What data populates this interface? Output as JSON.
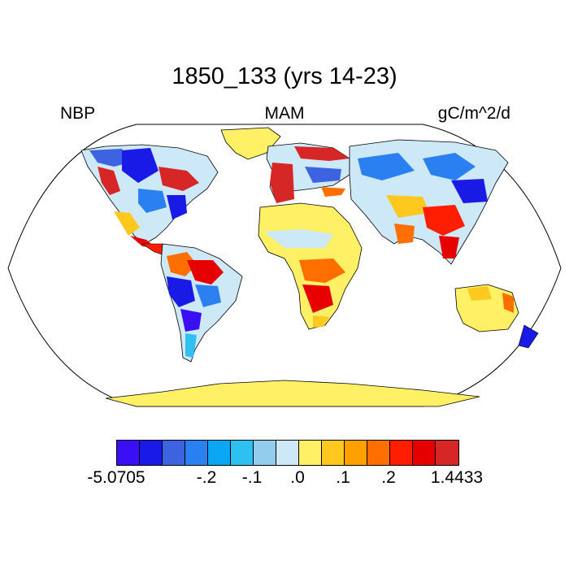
{
  "title": "1850_133 (yrs 14-23)",
  "left_label": "NBP",
  "center_label": "MAM",
  "right_label": "gC/m^2/d",
  "colorbar": {
    "colors": [
      "#3b0ff5",
      "#1a1ae6",
      "#3d63e0",
      "#2a80f0",
      "#0ba6f5",
      "#2fc0f2",
      "#93cdee",
      "#cde9f7",
      "#fff066",
      "#ffc81e",
      "#ffa000",
      "#ff6e00",
      "#ff1e00",
      "#e60000",
      "#d62626"
    ],
    "labels": [
      "-5.0705",
      "-.2",
      "-.1",
      ".0",
      ".1",
      ".2",
      "1.4433"
    ]
  },
  "map": {
    "projection": "Robinson",
    "ocean_color": "#ffffff",
    "land_outline_color": "#000000"
  }
}
